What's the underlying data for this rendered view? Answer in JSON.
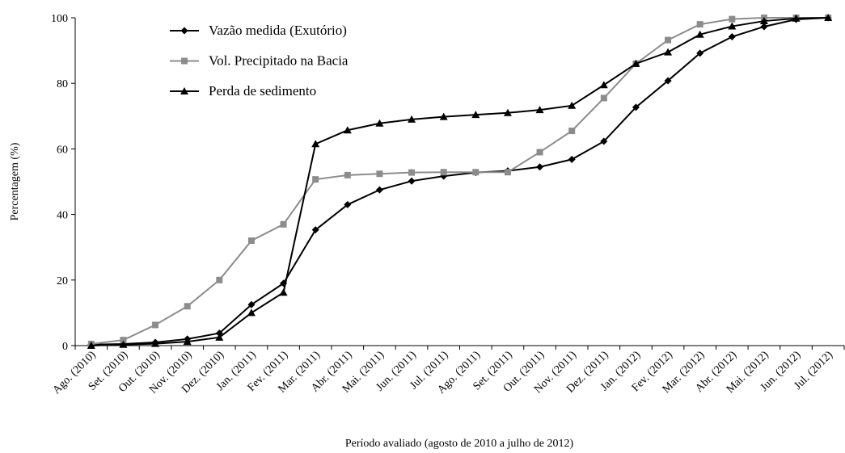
{
  "chart_data": {
    "type": "line",
    "xlabel": "Período avaliado (agosto de 2010 a julho de 2012)",
    "ylabel": "Percentagem (%)",
    "categories": [
      "Ago. (2010)",
      "Set. (2010)",
      "Out. (2010)",
      "Nov. (2010)",
      "Dez. (2010)",
      "Jan. (2011)",
      "Fev. (2011)",
      "Mar. (2011)",
      "Abr. (2011)",
      "Mai. (2011)",
      "Jun. (2011)",
      "Jul. (2011)",
      "Ago. (2011)",
      "Set. (2011)",
      "Out. (2011)",
      "Nov. (2011)",
      "Dez. (2011)",
      "Jan. (2012)",
      "Fev. (2012)",
      "Mar. (2012)",
      "Abr. (2012)",
      "Mai. (2012)",
      "Jun. (2012)",
      "Jul. (2012)"
    ],
    "series": [
      {
        "name": "Vazão medida (Exutório)",
        "color": "#000000",
        "marker": "diamond",
        "values": [
          0.3,
          0.5,
          1,
          2,
          3.8,
          12.5,
          19,
          35.3,
          43,
          47.5,
          50.2,
          51.7,
          52.8,
          53.3,
          54.5,
          56.8,
          62.3,
          72.7,
          80.8,
          89.2,
          94.2,
          97.3,
          99.5,
          100
        ]
      },
      {
        "name": "Vol. Precipitado na Bacia",
        "color": "#8c8c8c",
        "marker": "square",
        "values": [
          0.5,
          1.7,
          6.3,
          12,
          20,
          32,
          37,
          50.7,
          52,
          52.4,
          52.8,
          52.9,
          52.9,
          52.9,
          59,
          65.5,
          75.5,
          86,
          93.2,
          98,
          99.6,
          100,
          100,
          100
        ]
      },
      {
        "name": "Perda de sedimento",
        "color": "#000000",
        "marker": "triangle",
        "values": [
          0,
          0.3,
          0.6,
          1.2,
          2.5,
          10,
          16.2,
          61.5,
          65.7,
          67.8,
          69,
          69.8,
          70.4,
          71,
          71.9,
          73.2,
          79.5,
          86,
          89.5,
          94.9,
          97.4,
          99,
          99.8,
          100
        ]
      }
    ],
    "ylim": [
      0,
      100
    ],
    "yticks": [
      0,
      20,
      40,
      60,
      80,
      100
    ],
    "legend": "upper left"
  }
}
